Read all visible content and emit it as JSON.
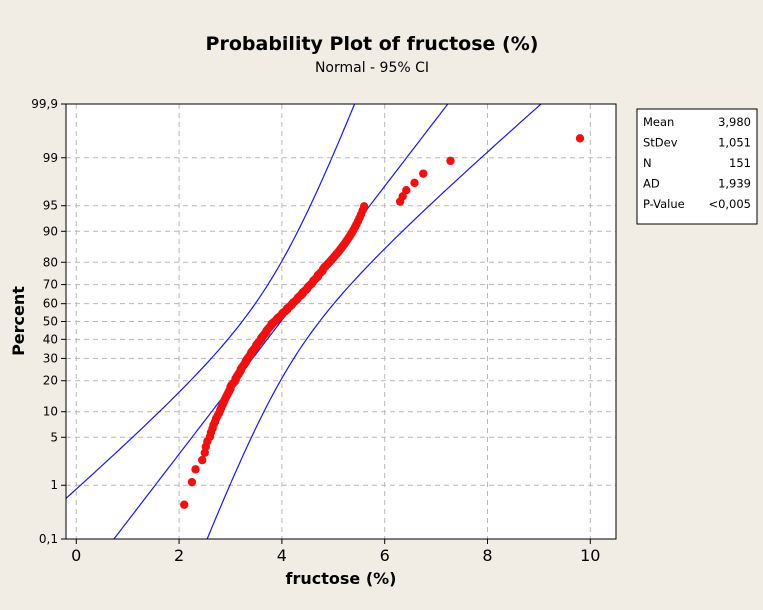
{
  "chart_data": {
    "type": "scatter",
    "title": "Probability Plot of fructose (%)",
    "subtitle": "Normal - 95% CI",
    "xlabel": "fructose (%)",
    "ylabel": "Percent",
    "xlim": [
      -0.2,
      10.5
    ],
    "x_ticks": [
      0,
      2,
      4,
      6,
      8,
      10
    ],
    "y_scale": "normal-probability",
    "ylim": [
      0.1,
      99.9
    ],
    "y_ticks": [
      0.1,
      1,
      5,
      10,
      20,
      30,
      40,
      50,
      60,
      70,
      80,
      90,
      95,
      99,
      99.9
    ],
    "y_tick_labels": [
      "0,1",
      "1",
      "5",
      "10",
      "20",
      "30",
      "40",
      "50",
      "60",
      "70",
      "80",
      "90",
      "95",
      "99",
      "99,9"
    ],
    "grid": true,
    "fit": {
      "mean": 3.98,
      "stdev": 1.051,
      "ci_z_half_width": 1.6
    },
    "stats": [
      {
        "label": "Mean",
        "value": "3,980"
      },
      {
        "label": "StDev",
        "value": "1,051"
      },
      {
        "label": "N",
        "value": "151"
      },
      {
        "label": "AD",
        "value": "1,939"
      },
      {
        "label": "P-Value",
        "value": "<0,005"
      }
    ],
    "points": {
      "n": 151,
      "x": [
        2.1,
        2.25,
        2.32,
        2.45,
        2.5,
        2.52,
        2.55,
        2.6,
        2.62,
        2.65,
        2.67,
        2.7,
        2.72,
        2.75,
        2.78,
        2.8,
        2.82,
        2.84,
        2.86,
        2.88,
        2.9,
        2.92,
        2.94,
        2.96,
        2.98,
        3.0,
        3.02,
        3.05,
        3.08,
        3.1,
        3.12,
        3.14,
        3.16,
        3.18,
        3.2,
        3.22,
        3.24,
        3.26,
        3.28,
        3.3,
        3.32,
        3.34,
        3.36,
        3.38,
        3.4,
        3.42,
        3.44,
        3.46,
        3.48,
        3.5,
        3.52,
        3.54,
        3.56,
        3.58,
        3.6,
        3.62,
        3.64,
        3.66,
        3.68,
        3.7,
        3.72,
        3.74,
        3.76,
        3.78,
        3.8,
        3.83,
        3.86,
        3.89,
        3.92,
        3.95,
        3.98,
        4.01,
        4.04,
        4.07,
        4.1,
        4.13,
        4.16,
        4.19,
        4.22,
        4.25,
        4.28,
        4.31,
        4.34,
        4.37,
        4.4,
        4.43,
        4.46,
        4.49,
        4.52,
        4.55,
        4.58,
        4.61,
        4.64,
        4.67,
        4.7,
        4.73,
        4.76,
        4.79,
        4.82,
        4.85,
        4.88,
        4.91,
        4.94,
        4.97,
        5.0,
        5.03,
        5.06,
        5.09,
        5.12,
        5.15,
        5.18,
        5.21,
        5.24,
        5.27,
        5.3,
        5.33,
        5.36,
        5.39,
        5.42,
        5.45,
        5.48,
        5.51,
        5.54,
        5.57,
        5.6,
        6.3,
        6.35,
        6.42,
        6.58,
        6.75,
        7.28,
        9.8,
        3.0,
        3.1,
        3.2,
        3.3,
        3.4,
        3.5,
        3.6,
        3.7,
        3.8,
        3.9,
        4.0,
        4.1,
        4.2,
        4.3,
        4.4,
        4.5,
        4.6,
        4.7,
        4.8
      ]
    }
  },
  "legend": {
    "placement": "top-right"
  },
  "colors": {
    "background": "#f1ede4",
    "plot_background": "#ffffff",
    "points": "#ee1111",
    "fit_lines": "#1a1adc",
    "grid": "#b8b8b8",
    "axes": "#000000"
  }
}
